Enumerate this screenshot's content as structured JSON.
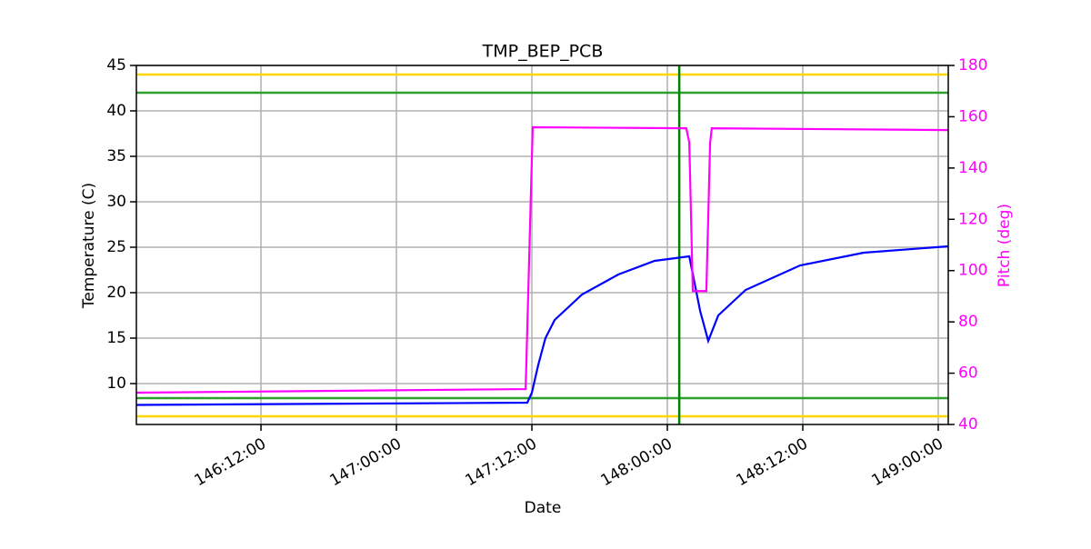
{
  "chart_data": {
    "type": "line",
    "title": "TMP_BEP_PCB",
    "xlabel": "Date",
    "ylabel": "Temperature (C)",
    "y2label": "Pitch (deg)",
    "xlim": [
      146.04,
      149.037
    ],
    "ylim": [
      5.5,
      45
    ],
    "y2lim": [
      40,
      180
    ],
    "xticks": [
      {
        "value": 146.5,
        "label": "146:12:00"
      },
      {
        "value": 147.0,
        "label": "147:00:00"
      },
      {
        "value": 147.5,
        "label": "147:12:00"
      },
      {
        "value": 148.0,
        "label": "148:00:00"
      },
      {
        "value": 148.5,
        "label": "148:12:00"
      },
      {
        "value": 149.0,
        "label": "149:00:00"
      }
    ],
    "yticks": [
      10,
      15,
      20,
      25,
      30,
      35,
      40,
      45
    ],
    "y2ticks": [
      40,
      60,
      80,
      100,
      120,
      140,
      160,
      180
    ],
    "grid": true,
    "hlines": [
      {
        "value": 44,
        "color": "#ffd700"
      },
      {
        "value": 6.4,
        "color": "#ffd700"
      },
      {
        "value": 42,
        "color": "#2ca02c"
      },
      {
        "value": 8.4,
        "color": "#2ca02c"
      }
    ],
    "vlines": [
      {
        "value": 148.044,
        "color": "#008000"
      }
    ],
    "series": [
      {
        "color": "#0000ff",
        "x": [
          146.04,
          147.483,
          147.5,
          147.523,
          147.55,
          147.584,
          147.685,
          147.819,
          147.953,
          148.081,
          148.121,
          148.151,
          148.188,
          148.289,
          148.49,
          148.725,
          149.037
        ],
        "values": [
          7.65,
          7.9,
          9,
          12,
          15,
          17,
          19.8,
          22,
          23.5,
          24,
          18,
          14.7,
          17.5,
          20.3,
          23,
          24.4,
          25.1
        ]
      },
      {
        "color": "#ff00ff",
        "axis": "y2",
        "x": [
          146.04,
          147.477,
          147.503,
          148.07,
          148.081,
          148.094,
          148.144,
          148.158,
          148.164,
          149.037
        ],
        "values": [
          52.4,
          53.8,
          155.9,
          155.5,
          150,
          92,
          92,
          150,
          155.5,
          154.8
        ]
      }
    ]
  }
}
